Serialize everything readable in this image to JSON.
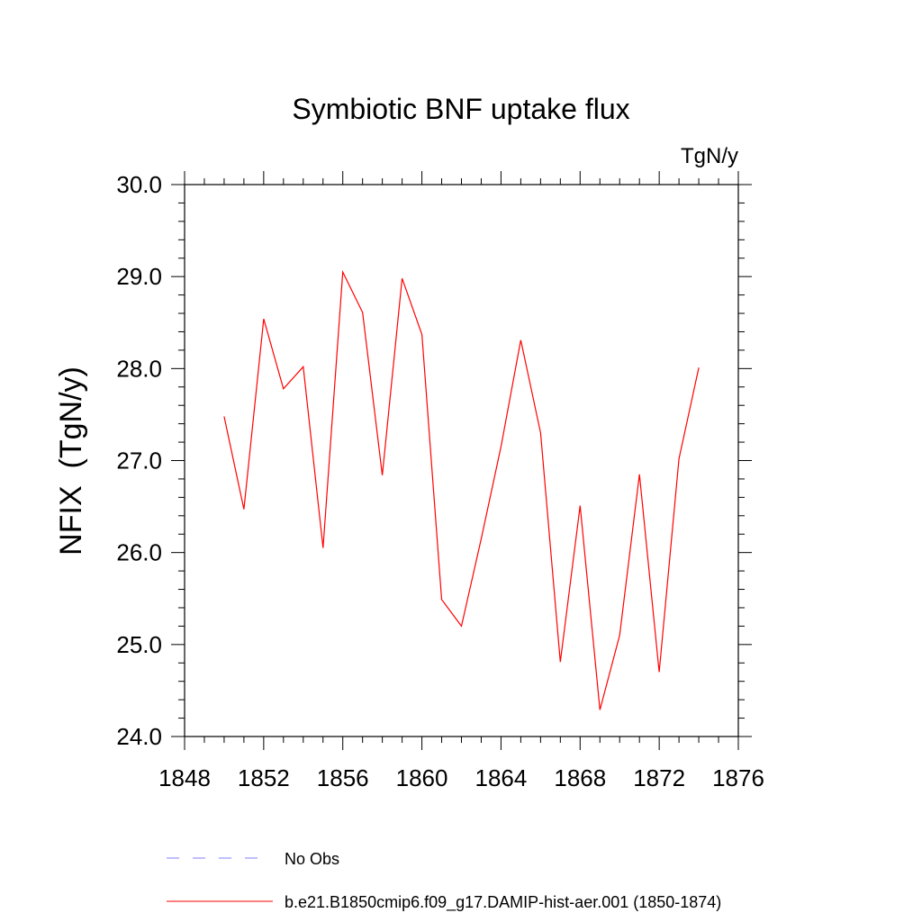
{
  "chart_data": {
    "type": "line",
    "title": "Symbiotic BNF uptake flux",
    "units_label": "TgN/y",
    "ylabel": "NFIX  (TgN/y)",
    "xlabel": "",
    "xlim": [
      1848,
      1876
    ],
    "ylim": [
      24.0,
      30.0
    ],
    "x_ticks": [
      "1848",
      "1852",
      "1856",
      "1860",
      "1864",
      "1868",
      "1872",
      "1876"
    ],
    "y_ticks": [
      "24.0",
      "25.0",
      "26.0",
      "27.0",
      "28.0",
      "29.0",
      "30.0"
    ],
    "grid": false,
    "legend_position": "bottom",
    "series": [
      {
        "name": "b.e21.B1850cmip6.f09_g17.DAMIP-hist-aer.001 (1850-1874)",
        "color": "#ff0000",
        "style": "solid",
        "x": [
          1850,
          1851,
          1852,
          1853,
          1854,
          1855,
          1856,
          1857,
          1858,
          1859,
          1860,
          1861,
          1862,
          1863,
          1864,
          1865,
          1866,
          1867,
          1868,
          1869,
          1870,
          1871,
          1872,
          1873,
          1874
        ],
        "y": [
          27.48,
          26.47,
          28.54,
          27.78,
          28.02,
          26.05,
          29.05,
          28.61,
          26.84,
          28.98,
          28.37,
          25.49,
          25.2,
          26.15,
          27.15,
          28.31,
          27.3,
          24.81,
          26.51,
          24.29,
          25.1,
          26.85,
          24.7,
          27.02,
          28.01
        ]
      }
    ],
    "legend": [
      {
        "label": "No Obs",
        "color": "#7f7fff",
        "style": "dashed"
      },
      {
        "label": "b.e21.B1850cmip6.f09_g17.DAMIP-hist-aer.001 (1850-1874)",
        "color": "#ff0000",
        "style": "solid"
      }
    ]
  }
}
